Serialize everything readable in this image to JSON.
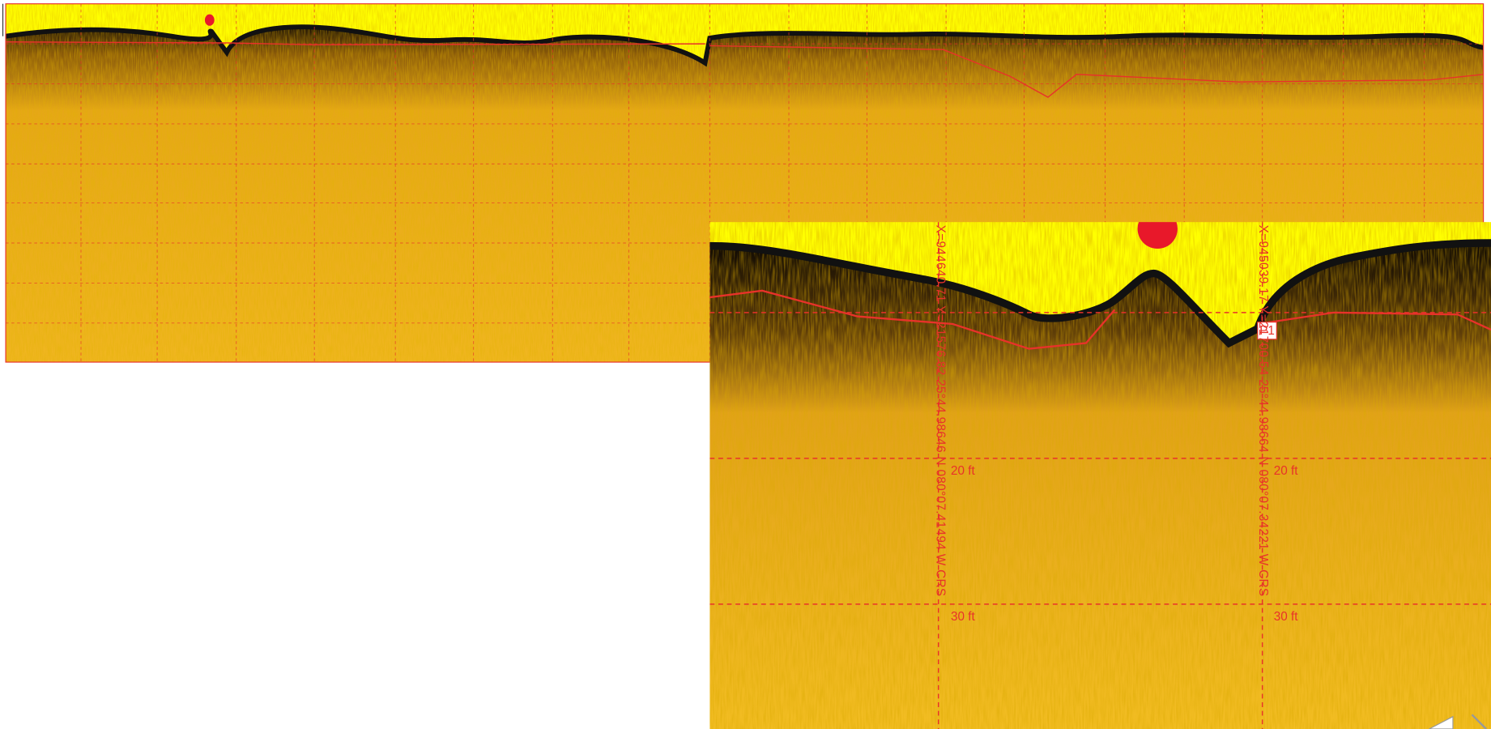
{
  "detail_view": {
    "markers": [
      {
        "coordinates": "X=944640.71 Y=21576.82 25°44.98646 N 080°07.41494 W CRS",
        "depth_labels": [
          "20 ft",
          "30 ft"
        ]
      },
      {
        "coordinates": "X=945039.17 Y=21700.54 25°44.98664 N 080°07.34221 W CRS",
        "tag": "P1",
        "depth_labels": [
          "20 ft",
          "30 ft"
        ]
      }
    ]
  }
}
